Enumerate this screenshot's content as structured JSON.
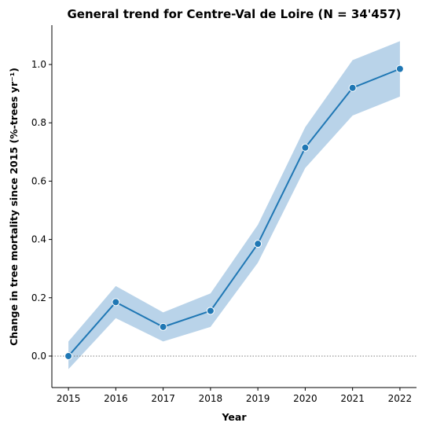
{
  "chart_data": {
    "type": "line",
    "title": "General trend for Centre-Val de Loire  (N = 34'457)",
    "xlabel": "Year",
    "ylabel": "Change in tree mortality since 2015 (%-trees yr⁻¹)",
    "x": [
      2015,
      2016,
      2017,
      2018,
      2019,
      2020,
      2021,
      2022
    ],
    "series": [
      {
        "values": [
          0.0,
          0.185,
          0.1,
          0.155,
          0.385,
          0.715,
          0.92,
          0.985
        ],
        "ci_lower": [
          -0.045,
          0.13,
          0.05,
          0.1,
          0.32,
          0.645,
          0.825,
          0.89
        ],
        "ci_upper": [
          0.05,
          0.24,
          0.15,
          0.215,
          0.45,
          0.785,
          1.015,
          1.08
        ],
        "color": "#1f77b4",
        "band_color": "#b9d3e9"
      }
    ],
    "xticks": [
      "2015",
      "2016",
      "2017",
      "2018",
      "2019",
      "2020",
      "2021",
      "2022"
    ],
    "yticks": [
      "0.0",
      "0.2",
      "0.4",
      "0.6",
      "0.8",
      "1.0"
    ],
    "ylim": [
      -0.108,
      1.135
    ],
    "xlim": [
      2014.65,
      2022.35
    ],
    "reference_line": {
      "y": 0.0,
      "style": "dotted",
      "color": "#808080"
    },
    "grid": false,
    "legend": "none"
  }
}
